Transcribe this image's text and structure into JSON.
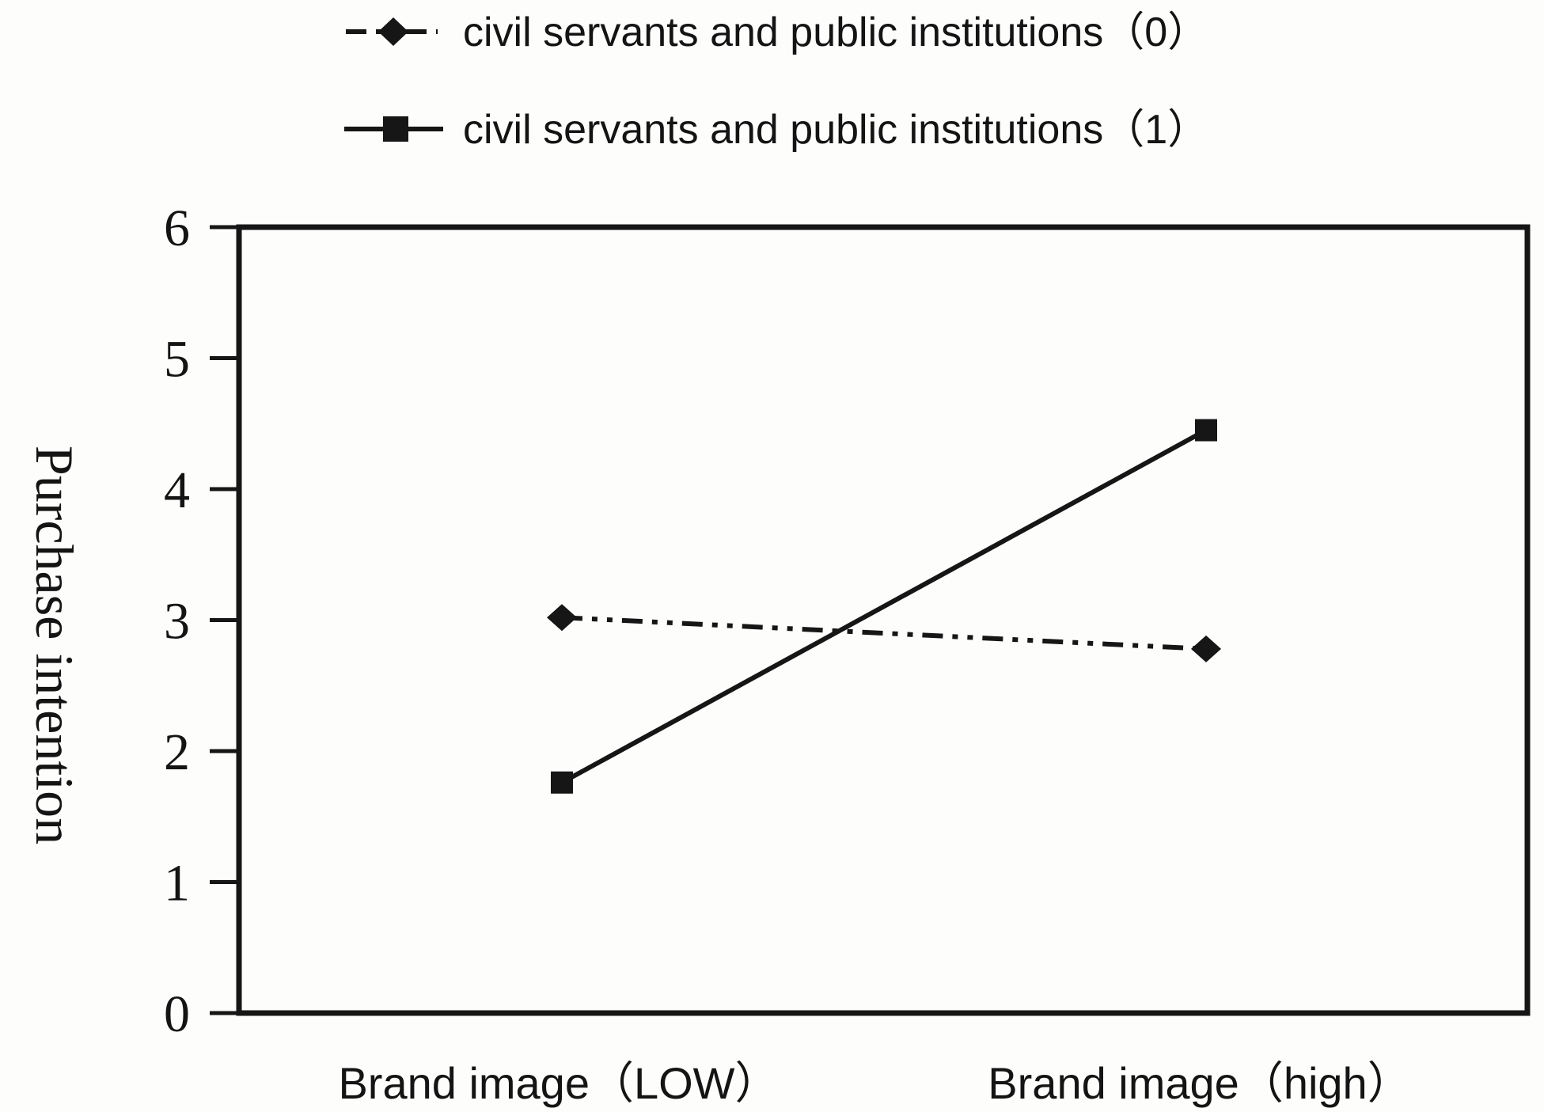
{
  "chart_data": {
    "type": "line",
    "title": "",
    "xlabel": "",
    "ylabel": "Purchase intention",
    "ylim": [
      0,
      6
    ],
    "yticks": [
      0,
      1,
      2,
      3,
      4,
      5,
      6
    ],
    "grid": false,
    "legend_position": "top-left",
    "categories": [
      "Brand image（LOW）",
      "Brand image（high）"
    ],
    "series": [
      {
        "name": "civil servants and public institutions（0）",
        "marker": "diamond",
        "line_style": "dash-dot-dot",
        "values": [
          3.02,
          2.78
        ]
      },
      {
        "name": "civil servants and public institutions（1）",
        "marker": "square",
        "line_style": "solid",
        "values": [
          1.76,
          4.45
        ]
      }
    ],
    "colors": {
      "line": "#161616",
      "text": "#141414",
      "background": "#fdfdfc"
    }
  }
}
